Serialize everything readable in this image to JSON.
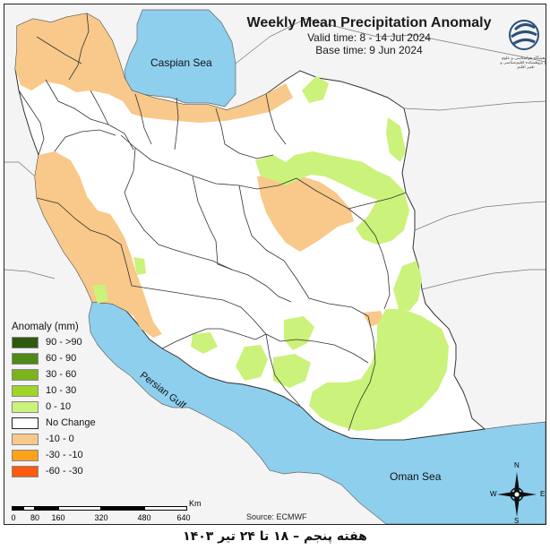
{
  "title": {
    "main": "Weekly Mean Precipitation Anomaly",
    "valid_time": "Valid time: 8 - 14 Jul 2024",
    "base_time": "Base time: 9 Jun 2024"
  },
  "labels": {
    "caspian": "Caspian Sea",
    "persian_gulf": "Persian Gulf",
    "oman_sea": "Oman Sea"
  },
  "legend": {
    "title": "Anomaly (mm)",
    "items": [
      {
        "label": "90 - >90",
        "color": "#2d5a0c"
      },
      {
        "label": "60 - 90",
        "color": "#4f8a18"
      },
      {
        "label": "30 - 60",
        "color": "#7ab41c"
      },
      {
        "label": "10 - 30",
        "color": "#9fd52a"
      },
      {
        "label": "0 - 10",
        "color": "#cbf27a"
      },
      {
        "label": "No Change",
        "color": "#ffffff"
      },
      {
        "label": "-10 - 0",
        "color": "#f8c98a"
      },
      {
        "label": "-30 - -10",
        "color": "#ffa21a"
      },
      {
        "label": "-60 - -30",
        "color": "#ff5a10"
      }
    ]
  },
  "scale": {
    "unit": "Km",
    "ticks": [
      "0",
      "80",
      "160",
      "320",
      "480",
      "640"
    ]
  },
  "source": "Source: ECMWF",
  "compass": {
    "n": "N",
    "s": "S",
    "e": "E",
    "w": "W"
  },
  "caption": "هفته پنجم – ۱۸ تا ۲۴ تیر ۱۴۰۳",
  "logo_text": "پژوهشگاه هواشناسی و علوم جو | پژوهشکده اقلیم‌شناسی و تغییر اقلیم",
  "colors": {
    "sea": "#8ecfee",
    "land_outside": "#f4f4f4",
    "iran_land": "#ffffff",
    "border": "#444444"
  }
}
